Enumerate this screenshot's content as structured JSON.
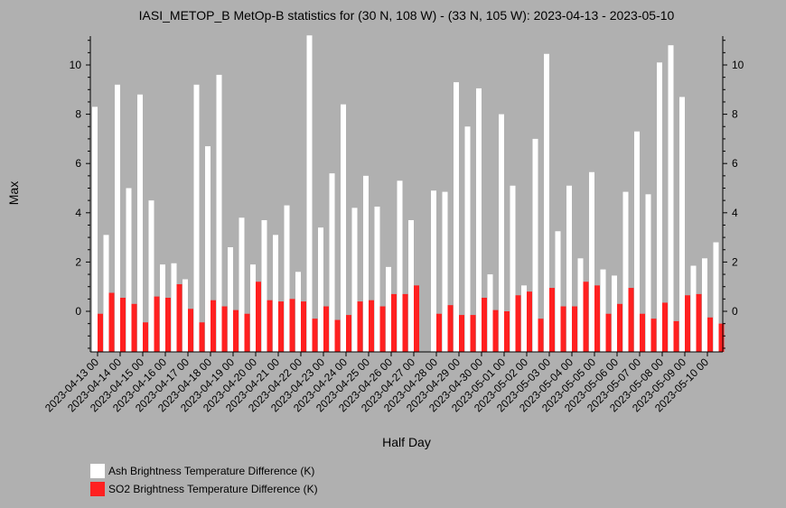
{
  "chart_data": {
    "type": "bar",
    "title": "IASI_METOP_B MetOp-B statistics for (30 N, 108 W) - (33 N, 105 W): 2023-04-13 - 2023-05-10",
    "xlabel": "Half Day",
    "ylabel": "Max",
    "ylim": [
      -1.6,
      11.2
    ],
    "yticks": [
      0,
      2,
      4,
      6,
      8,
      10
    ],
    "grid": false,
    "legend_position": "bottom-left",
    "x_tick_labels": [
      "2023-04-13 00",
      "2023-04-14 00",
      "2023-04-15 00",
      "2023-04-16 00",
      "2023-04-17 00",
      "2023-04-18 00",
      "2023-04-19 00",
      "2023-04-20 00",
      "2023-04-21 00",
      "2023-04-22 00",
      "2023-04-23 00",
      "2023-04-24 00",
      "2023-04-25 00",
      "2023-04-26 00",
      "2023-04-27 00",
      "2023-04-28 00",
      "2023-04-29 00",
      "2023-04-30 00",
      "2023-05-01 00",
      "2023-05-02 00",
      "2023-05-03 00",
      "2023-05-04 00",
      "2023-05-05 00",
      "2023-05-06 00",
      "2023-05-07 00",
      "2023-05-08 00",
      "2023-05-09 00",
      "2023-05-10 00"
    ],
    "series": [
      {
        "name": "Ash Brightness Temperature Difference (K)",
        "color": "#ffffff",
        "values": [
          8.3,
          3.1,
          9.2,
          5.0,
          8.8,
          4.5,
          1.9,
          1.95,
          1.3,
          9.2,
          6.7,
          9.6,
          2.6,
          3.8,
          1.9,
          3.7,
          3.1,
          4.3,
          1.6,
          11.2,
          3.4,
          5.6,
          8.4,
          4.2,
          5.5,
          4.25,
          1.8,
          5.3,
          3.7,
          null,
          4.9,
          4.85,
          9.3,
          7.5,
          9.05,
          1.5,
          8.0,
          5.1,
          1.05,
          7.0,
          10.45,
          3.25,
          5.1,
          2.15,
          5.65,
          1.7,
          1.45,
          4.85,
          7.3,
          4.75,
          10.1,
          10.8,
          8.7,
          1.85,
          2.15,
          2.8
        ]
      },
      {
        "name": "SO2 Brightness Temperature Difference (K)",
        "color": "#ff2020",
        "values": [
          -0.1,
          0.75,
          0.55,
          0.3,
          -0.45,
          0.6,
          0.55,
          1.1,
          0.1,
          -0.45,
          0.45,
          0.2,
          0.05,
          -0.1,
          1.2,
          0.45,
          0.4,
          0.5,
          0.4,
          -0.3,
          0.2,
          -0.35,
          -0.15,
          0.4,
          0.45,
          0.2,
          0.7,
          0.7,
          1.05,
          null,
          -0.1,
          0.25,
          -0.15,
          -0.15,
          0.55,
          0.05,
          0.0,
          0.65,
          0.8,
          -0.3,
          0.95,
          0.2,
          0.2,
          1.2,
          1.05,
          -0.1,
          0.3,
          0.95,
          -0.1,
          -0.3,
          0.35,
          -0.4,
          0.65,
          0.7,
          -0.25,
          -0.5
        ]
      }
    ]
  }
}
